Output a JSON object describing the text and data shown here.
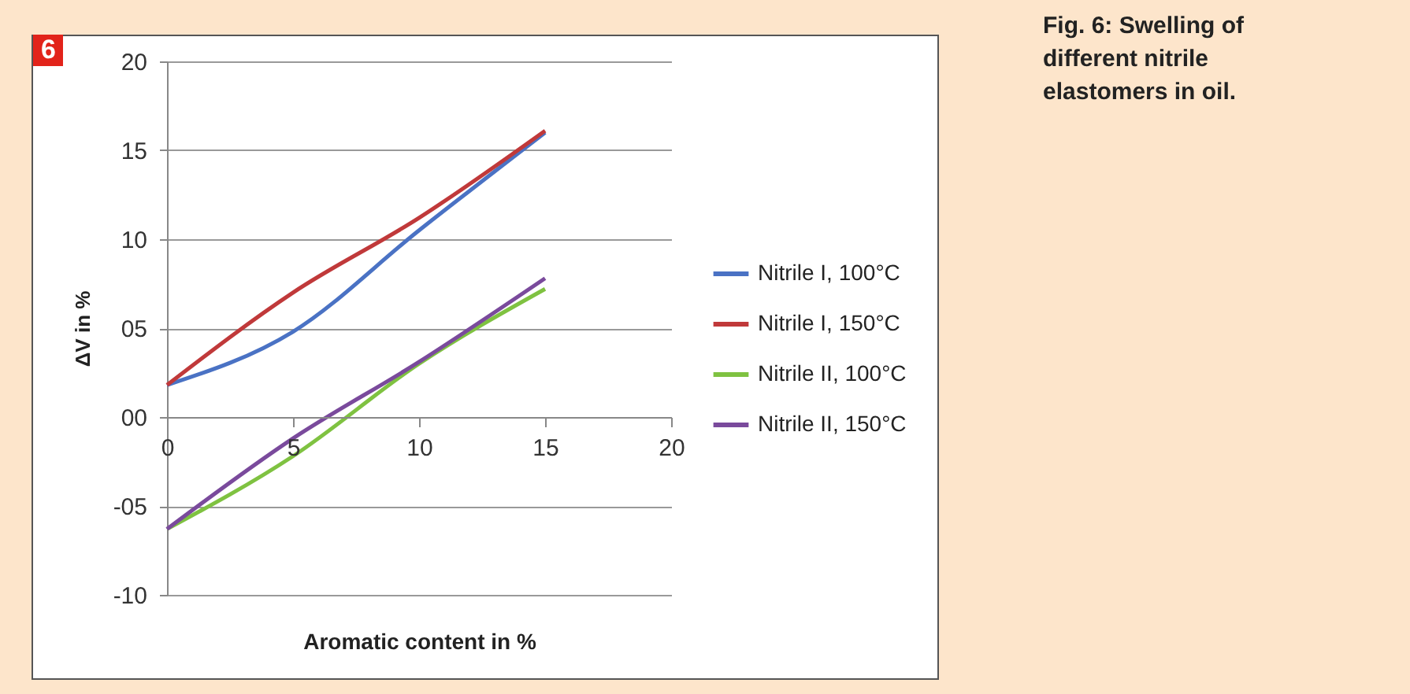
{
  "chart_data": {
    "type": "line",
    "title": "Fig. 6: Swelling of different nitrile elastomers in oil.",
    "annotations": [
      "6"
    ],
    "xlabel": "Aromatic content in %",
    "ylabel": "ΔV in %",
    "x": [
      0,
      5,
      10,
      15
    ],
    "series": [
      {
        "name": "Nitrile I, 100°C",
        "color": "#4a72c4",
        "values": [
          1.8,
          4.8,
          10.5,
          16
        ]
      },
      {
        "name": "Nitrile I, 150°C",
        "color": "#c0393a",
        "values": [
          1.8,
          7,
          11.2,
          16.1
        ]
      },
      {
        "name": "Nitrile II, 100°C",
        "color": "#7fc241",
        "values": [
          -6.3,
          -2.2,
          3,
          7.2
        ]
      },
      {
        "name": "Nitrile II, 150°C",
        "color": "#7a4a9c",
        "values": [
          -6.3,
          -1.2,
          3.1,
          7.8
        ]
      }
    ],
    "xlim": [
      0,
      20
    ],
    "xticks": [
      0,
      5,
      10,
      15,
      20
    ],
    "ylim": [
      -10,
      20
    ],
    "yticks": [
      {
        "value": -10,
        "label": "-10"
      },
      {
        "value": -5,
        "label": "-05"
      },
      {
        "value": 0,
        "label": "00"
      },
      {
        "value": 5,
        "label": "05"
      },
      {
        "value": 10,
        "label": "10"
      },
      {
        "value": 15,
        "label": "15"
      },
      {
        "value": 20,
        "label": "20"
      }
    ],
    "grid": "y",
    "legend": "right",
    "marker": "none",
    "line_style": "solid"
  }
}
